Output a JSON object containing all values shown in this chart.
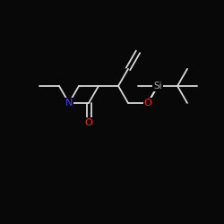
{
  "background_color": "#080808",
  "bond_color": "#d8d8d8",
  "atom_colors": {
    "N": "#4040ff",
    "O": "#ff2020",
    "Si": "#a8a8a8",
    "C": "#d8d8d8"
  },
  "figsize": [
    2.5,
    2.5
  ],
  "dpi": 100,
  "bond_lw": 1.3
}
